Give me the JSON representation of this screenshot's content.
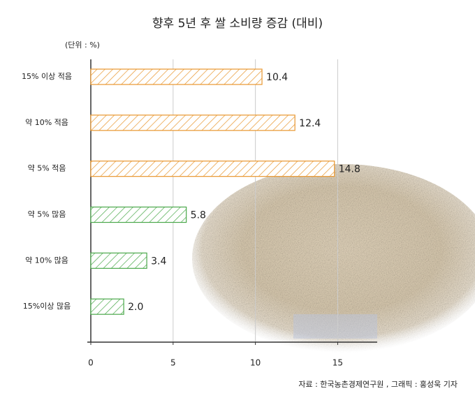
{
  "chart_data": {
    "type": "bar",
    "orientation": "horizontal",
    "title": "향후 5년 후 쌀 소비량 증감 (대비)",
    "unit": "(단위 : %)",
    "source": "자료 : 한국농촌경제연구원 , 그래픽 : 홍성욱 기자",
    "categories": [
      "15% 이상 적음",
      "약 10% 적음",
      "약 5% 적음",
      "약 5% 많음",
      "약 10% 많음",
      "15%이상 많음"
    ],
    "values": [
      10.4,
      12.4,
      14.8,
      5.8,
      3.4,
      2.0
    ],
    "value_labels": [
      "10.4",
      "12.4",
      "14.8",
      "5.8",
      "3.4",
      "2.0"
    ],
    "colors": [
      "#e8962e",
      "#e8962e",
      "#e8962e",
      "#4aa84a",
      "#4aa84a",
      "#4aa84a"
    ],
    "xlim": [
      0,
      17.4
    ],
    "xticks": [
      0,
      5,
      10,
      15
    ],
    "grid": true
  }
}
